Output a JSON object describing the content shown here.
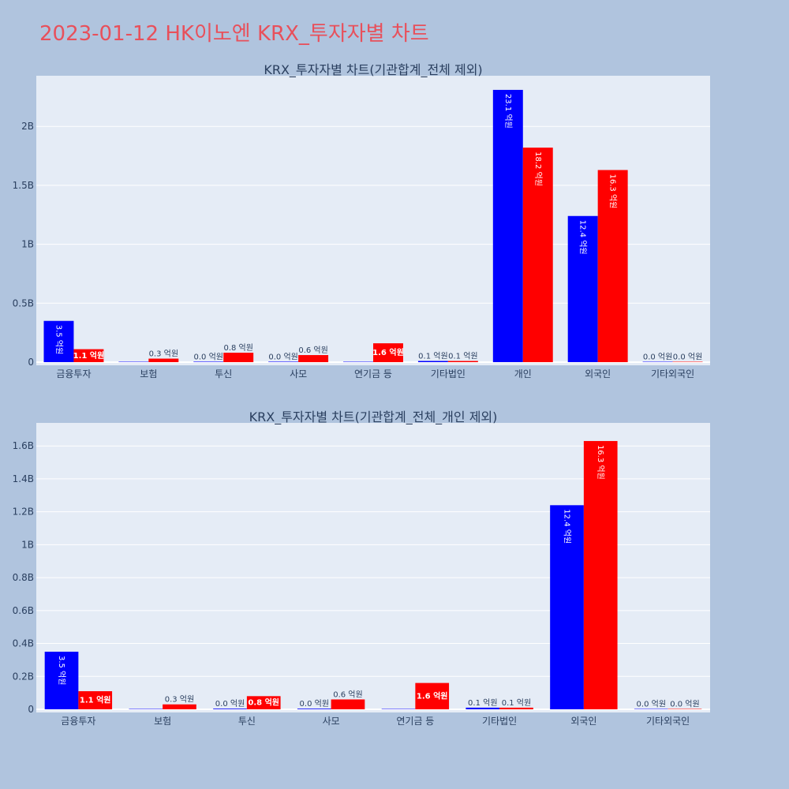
{
  "page_title": "2023-01-12 HK이노엔 KRX_투자자별 차트",
  "colors": {
    "buy": "#0000ff",
    "sell": "#ff0000",
    "plot_bg": "#e5ecf6",
    "page_bg": "#b0c4de",
    "title": "#e8505b"
  },
  "chart_data": [
    {
      "type": "bar",
      "title": "KRX_투자자별 차트(기관합계_전체 제외)",
      "categories": [
        "금융투자",
        "보험",
        "투신",
        "사모",
        "연기금 등",
        "기타법인",
        "개인",
        "외국인",
        "기타외국인"
      ],
      "series": [
        {
          "values": [
            0.35,
            0.0,
            0.004,
            0.004,
            0.0,
            0.01,
            2.31,
            1.24,
            0.002
          ],
          "labels": [
            "3.5 억원",
            "",
            "0.0 억원",
            "0.0 억원",
            "",
            "0.1 억원",
            "23.1 억원",
            "12.4 억원",
            "0.0 억원"
          ]
        },
        {
          "values": [
            0.11,
            0.03,
            0.08,
            0.06,
            0.16,
            0.01,
            1.82,
            1.63,
            0.002
          ],
          "labels": [
            "1.1 억원",
            "0.3 억원",
            "0.8 억원",
            "0.6 억원",
            "1.6 억원",
            "0.1 억원",
            "18.2 억원",
            "16.3 억원",
            "0.0 억원"
          ]
        }
      ],
      "yticks": [
        0,
        0.5,
        1,
        1.5,
        2
      ],
      "ytick_labels": [
        "0",
        "0.5B",
        "1B",
        "1.5B",
        "2B"
      ],
      "ylim": [
        0,
        2.43
      ],
      "grid": true
    },
    {
      "type": "bar",
      "title": "KRX_투자자별 차트(기관합계_전체_개인 제외)",
      "categories": [
        "금융투자",
        "보험",
        "투신",
        "사모",
        "연기금 등",
        "기타법인",
        "외국인",
        "기타외국인"
      ],
      "series": [
        {
          "values": [
            0.35,
            0.0,
            0.004,
            0.004,
            0.0,
            0.01,
            1.24,
            0.002
          ],
          "labels": [
            "3.5 억원",
            "",
            "0.0 억원",
            "0.0 억원",
            "",
            "0.1 억원",
            "12.4 억원",
            "0.0 억원"
          ]
        },
        {
          "values": [
            0.11,
            0.03,
            0.08,
            0.06,
            0.16,
            0.01,
            1.63,
            0.002
          ],
          "labels": [
            "1.1 억원",
            "0.3 억원",
            "0.8 억원",
            "0.6 억원",
            "1.6 억원",
            "0.1 억원",
            "16.3 억원",
            "0.0 억원"
          ]
        }
      ],
      "yticks": [
        0,
        0.2,
        0.4,
        0.6,
        0.8,
        1,
        1.2,
        1.4,
        1.6
      ],
      "ytick_labels": [
        "0",
        "0.2B",
        "0.4B",
        "0.6B",
        "0.8B",
        "1B",
        "1.2B",
        "1.4B",
        "1.6B"
      ],
      "ylim": [
        0,
        1.74
      ],
      "grid": true
    }
  ]
}
